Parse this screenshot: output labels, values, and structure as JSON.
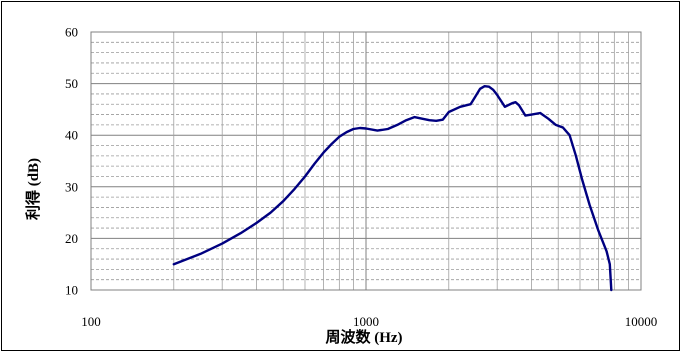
{
  "chart_data": {
    "type": "line",
    "title": "",
    "xlabel": "周波数 (Hz)",
    "ylabel": "利得 (dB)",
    "x_scale": "log",
    "xlim": [
      100,
      10000
    ],
    "ylim": [
      10,
      60
    ],
    "x_ticks": [
      100,
      1000,
      10000
    ],
    "x_tick_labels": [
      "100",
      "1000",
      "10000"
    ],
    "y_ticks": [
      10,
      20,
      30,
      40,
      50,
      60
    ],
    "y_tick_labels": [
      "10",
      "20",
      "30",
      "40",
      "50",
      "60"
    ],
    "y_minor_step": 2,
    "grid": true,
    "legend": "none",
    "line_color": "#000080",
    "series": [
      {
        "x": [
          200,
          250,
          300,
          350,
          400,
          450,
          500,
          550,
          600,
          650,
          700,
          750,
          800,
          850,
          900,
          950,
          1000,
          1100,
          1200,
          1300,
          1400,
          1500,
          1600,
          1700,
          1800,
          1900,
          2000,
          2200,
          2400,
          2500,
          2600,
          2700,
          2800,
          2900,
          3000,
          3200,
          3400,
          3500,
          3600,
          3800,
          4000,
          4300,
          4600,
          4900,
          5200,
          5500,
          5800,
          6100,
          6500,
          7000,
          7500,
          7700,
          7800
        ],
        "y": [
          15.0,
          17.0,
          19.0,
          21.0,
          23.0,
          25.0,
          27.2,
          29.6,
          32.0,
          34.5,
          36.6,
          38.3,
          39.7,
          40.6,
          41.2,
          41.4,
          41.3,
          40.9,
          41.2,
          42.0,
          42.9,
          43.5,
          43.2,
          42.9,
          42.8,
          43.0,
          44.5,
          45.5,
          46.0,
          47.5,
          49.0,
          49.5,
          49.4,
          48.8,
          47.8,
          45.5,
          46.2,
          46.4,
          45.8,
          43.8,
          44.0,
          44.3,
          43.2,
          42.0,
          41.5,
          40.0,
          36.0,
          31.5,
          26.5,
          21.5,
          17.5,
          15.0,
          9.0
        ]
      }
    ]
  }
}
